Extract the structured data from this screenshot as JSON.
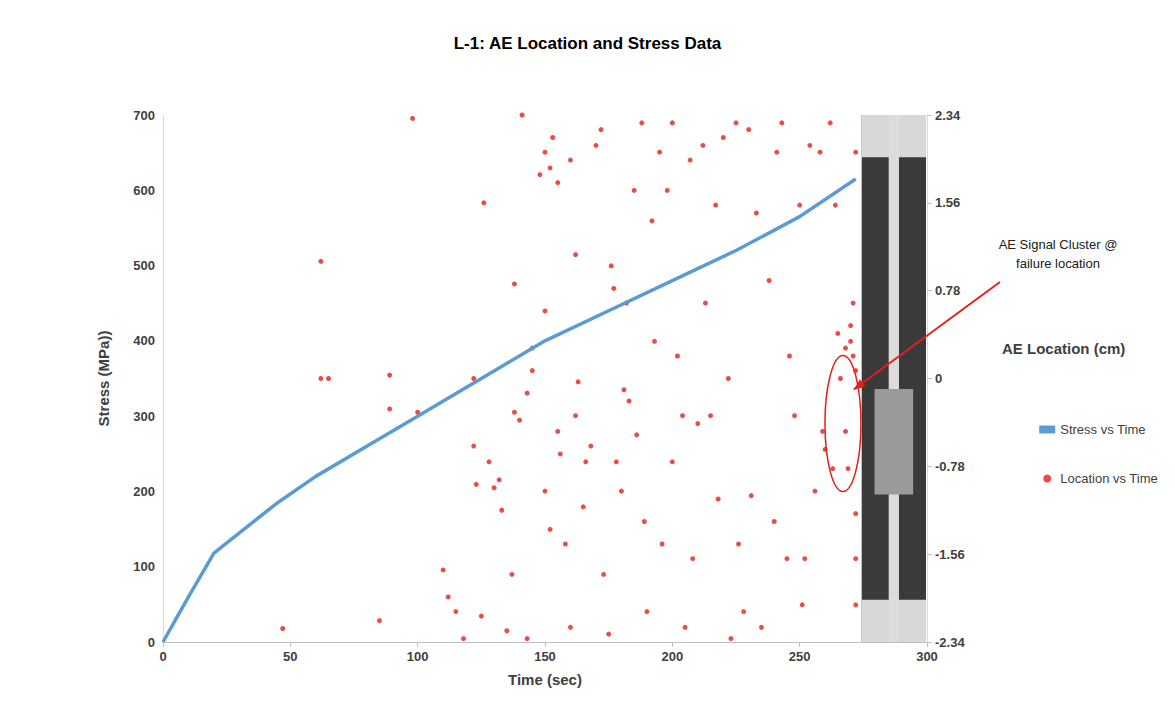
{
  "chart_data": {
    "type": "scatter",
    "title": "L-1: AE Location and Stress Data",
    "x_label": "Time (sec)",
    "y_label": "Stress (MPa))",
    "y2_label": "AE Location (cm)",
    "xlim": [
      0,
      300
    ],
    "xticks": [
      0,
      50,
      100,
      150,
      200,
      250,
      300
    ],
    "ylim": [
      0,
      700
    ],
    "yticks": [
      0,
      100,
      200,
      300,
      400,
      500,
      600,
      700
    ],
    "y2lim": [
      -2.34,
      2.34
    ],
    "y2ticks": [
      -2.34,
      -1.56,
      -0.78,
      0,
      0.78,
      1.56,
      2.34
    ],
    "grid": false,
    "legend": "right",
    "annotations": [
      {
        "text": "AE Signal Cluster @ failure location",
        "x": 267,
        "y": -0.4
      }
    ],
    "series": [
      {
        "name": "Stress vs Time",
        "type": "line",
        "color": "#5b9bd5",
        "marker": "none",
        "line_style": "solid",
        "x": [
          0,
          5,
          10,
          20,
          30,
          45,
          60,
          80,
          100,
          125,
          150,
          175,
          200,
          225,
          250,
          272
        ],
        "values": [
          0,
          30,
          60,
          118,
          145,
          185,
          220,
          260,
          300,
          350,
          400,
          440,
          480,
          520,
          565,
          615
        ]
      },
      {
        "name": "Location vs Time",
        "type": "scatter",
        "color": "#e3201b",
        "marker": "circle",
        "axis": "y2",
        "x": [
          47,
          62,
          62,
          65,
          85,
          89,
          89,
          98,
          100,
          110,
          112,
          115,
          118,
          122,
          122,
          123,
          125,
          126,
          128,
          130,
          132,
          133,
          135,
          137,
          138,
          138,
          140,
          141,
          143,
          143,
          145,
          145,
          148,
          150,
          150,
          150,
          152,
          152,
          153,
          155,
          155,
          156,
          158,
          160,
          160,
          162,
          162,
          163,
          165,
          166,
          168,
          170,
          172,
          173,
          175,
          176,
          177,
          178,
          180,
          181,
          182,
          183,
          185,
          186,
          188,
          189,
          190,
          192,
          193,
          195,
          196,
          198,
          200,
          200,
          202,
          204,
          205,
          207,
          208,
          210,
          212,
          213,
          215,
          217,
          218,
          220,
          222,
          223,
          225,
          226,
          228,
          230,
          231,
          233,
          235,
          238,
          240,
          241,
          243,
          245,
          246,
          248,
          250,
          251,
          252,
          254,
          256,
          258,
          259,
          260,
          262,
          263,
          264,
          265,
          266,
          268,
          268,
          269,
          270,
          270,
          271,
          271,
          272,
          272,
          272,
          272,
          272
        ],
        "values": [
          -2.22,
          1.04,
          0.0,
          0.0,
          -2.15,
          0.03,
          -0.27,
          2.31,
          -0.3,
          -1.7,
          -1.94,
          -2.07,
          -2.31,
          0.0,
          -0.6,
          -0.94,
          -2.11,
          1.56,
          -0.74,
          -0.97,
          -0.9,
          -1.17,
          -2.24,
          -1.74,
          0.84,
          -0.3,
          -0.37,
          2.34,
          -0.13,
          -2.31,
          0.27,
          0.07,
          1.81,
          2.01,
          0.6,
          -1.0,
          -1.34,
          1.87,
          2.14,
          1.74,
          -0.47,
          -0.67,
          -1.47,
          1.94,
          -2.21,
          1.1,
          -0.33,
          -0.03,
          -1.14,
          -0.74,
          -0.6,
          2.07,
          2.21,
          -1.74,
          -2.27,
          1.0,
          0.8,
          -0.74,
          -1.0,
          -0.1,
          0.67,
          -0.2,
          1.67,
          -0.5,
          2.27,
          -1.27,
          -2.07,
          1.4,
          0.33,
          2.01,
          -1.47,
          1.67,
          2.27,
          -0.74,
          0.2,
          -0.33,
          -2.21,
          1.94,
          -1.6,
          -0.4,
          2.07,
          0.67,
          -0.33,
          1.54,
          -1.07,
          2.14,
          0.0,
          -2.31,
          2.27,
          -1.47,
          -2.07,
          2.21,
          -1.04,
          1.47,
          -2.21,
          0.87,
          -1.27,
          2.01,
          2.27,
          -1.6,
          0.2,
          -0.33,
          1.54,
          -2.01,
          -1.6,
          2.07,
          -1.0,
          2.01,
          -0.47,
          -0.63,
          2.27,
          -0.8,
          1.54,
          0.4,
          0.0,
          0.27,
          -0.47,
          -0.8,
          0.47,
          0.33,
          0.2,
          0.67,
          0.07,
          -1.2,
          -1.6,
          -2.01,
          2.01
        ]
      }
    ]
  }
}
